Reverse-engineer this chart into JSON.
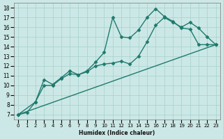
{
  "title": "",
  "xlabel": "Humidex (Indice chaleur)",
  "ylabel": "",
  "bg_color": "#cce8e6",
  "grid_color": "#aad4d0",
  "line_color": "#1e7a6d",
  "xlim": [
    -0.5,
    23.5
  ],
  "ylim": [
    6.5,
    18.5
  ],
  "xticks": [
    0,
    1,
    2,
    3,
    4,
    5,
    6,
    7,
    8,
    9,
    10,
    11,
    12,
    13,
    14,
    15,
    16,
    17,
    18,
    19,
    20,
    21,
    22,
    23
  ],
  "yticks": [
    7,
    8,
    9,
    10,
    11,
    12,
    13,
    14,
    15,
    16,
    17,
    18
  ],
  "series": [
    {
      "x": [
        0,
        1,
        2,
        3,
        4,
        5,
        6,
        7,
        8,
        9,
        10,
        11,
        12,
        13,
        14,
        15,
        16,
        17,
        18,
        19,
        20,
        21,
        22,
        23
      ],
      "y": [
        7,
        7.2,
        8.3,
        10.6,
        10.1,
        10.8,
        11.5,
        11.1,
        11.5,
        12.4,
        13.4,
        17.0,
        15.0,
        14.9,
        15.7,
        17.0,
        17.9,
        17.1,
        16.6,
        15.9,
        15.8,
        14.2,
        14.2,
        14.2
      ],
      "marker": "D",
      "markersize": 2.5,
      "linewidth": 1.0
    },
    {
      "x": [
        0,
        2,
        3,
        4,
        5,
        6,
        7,
        8,
        9,
        10,
        11,
        12,
        13,
        14,
        15,
        16,
        17,
        18,
        19,
        20,
        21,
        22,
        23
      ],
      "y": [
        7,
        8.3,
        10.0,
        10.0,
        10.7,
        11.2,
        11.1,
        11.4,
        12.0,
        12.2,
        12.3,
        12.5,
        12.2,
        13.0,
        14.5,
        16.2,
        17.0,
        16.5,
        16.0,
        16.5,
        15.9,
        15.0,
        14.2
      ],
      "marker": "D",
      "markersize": 2.5,
      "linewidth": 1.0
    },
    {
      "x": [
        0,
        23
      ],
      "y": [
        7,
        14.2
      ],
      "marker": null,
      "markersize": 0,
      "linewidth": 1.0
    }
  ]
}
